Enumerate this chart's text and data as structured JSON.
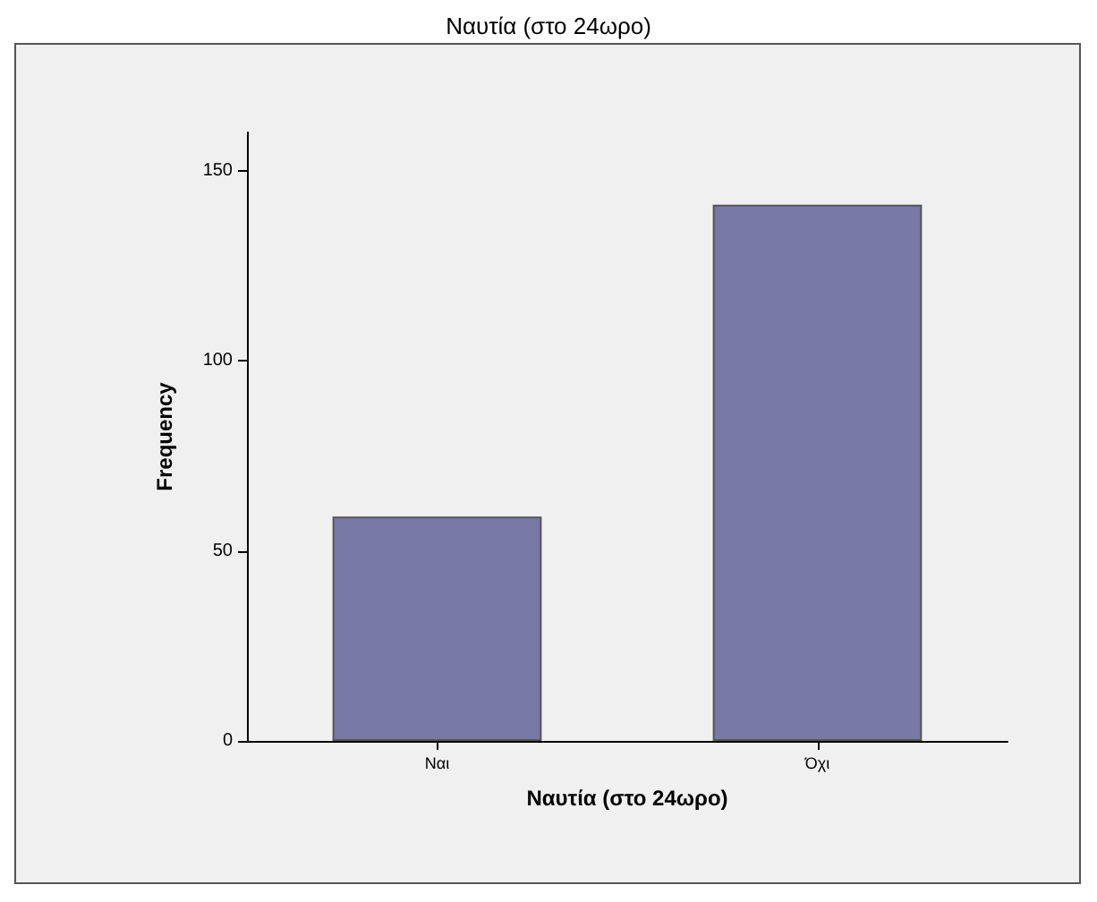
{
  "chart_data": {
    "type": "bar",
    "title": "Ναυτία (στο 24ωρο)",
    "xlabel": "Ναυτία (στο 24ωρο)",
    "ylabel": "Frequency",
    "categories": [
      "Ναι",
      "Όχι"
    ],
    "values": [
      59,
      141
    ],
    "color": "#7879a6",
    "ylim": [
      0,
      160
    ],
    "yticks": [
      0,
      50,
      100,
      150
    ],
    "grid": false
  }
}
